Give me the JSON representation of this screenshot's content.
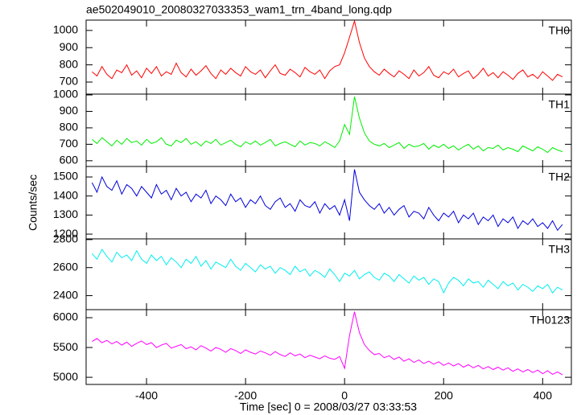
{
  "chart_data": {
    "type": "line",
    "title": "ae502049010_20080327033353_wam1_trn_4band_long.qdp",
    "xlabel": "Time [sec] 0 = 2008/03/27 03:33:53",
    "ylabel": "Counts/sec",
    "xlim": [
      -522,
      458
    ],
    "xticks": [
      -400,
      -200,
      0,
      200,
      400
    ],
    "x": [
      -510,
      -500,
      -490,
      -480,
      -470,
      -460,
      -450,
      -440,
      -430,
      -420,
      -410,
      -400,
      -390,
      -380,
      -370,
      -360,
      -350,
      -340,
      -330,
      -320,
      -310,
      -300,
      -290,
      -280,
      -270,
      -260,
      -250,
      -240,
      -230,
      -220,
      -210,
      -200,
      -190,
      -180,
      -170,
      -160,
      -150,
      -140,
      -130,
      -120,
      -110,
      -100,
      -90,
      -80,
      -70,
      -60,
      -50,
      -40,
      -30,
      -20,
      -10,
      0,
      10,
      20,
      30,
      40,
      50,
      60,
      70,
      80,
      90,
      100,
      110,
      120,
      130,
      140,
      150,
      160,
      170,
      180,
      190,
      200,
      210,
      220,
      230,
      240,
      250,
      260,
      270,
      280,
      290,
      300,
      310,
      320,
      330,
      340,
      350,
      360,
      370,
      380,
      390,
      400,
      410,
      420,
      430,
      440
    ],
    "panels": [
      {
        "name": "TH0",
        "color": "#ff0000",
        "ylim": [
          630,
          1060
        ],
        "yticks": [
          700,
          800,
          900,
          1000
        ],
        "values": [
          760,
          735,
          790,
          745,
          720,
          770,
          755,
          800,
          740,
          765,
          725,
          780,
          750,
          790,
          735,
          760,
          745,
          810,
          755,
          730,
          775,
          740,
          765,
          795,
          750,
          720,
          770,
          745,
          780,
          755,
          735,
          790,
          760,
          745,
          770,
          725,
          765,
          800,
          750,
          740,
          775,
          755,
          730,
          785,
          760,
          745,
          770,
          720,
          765,
          790,
          800,
          870,
          960,
          1055,
          930,
          840,
          790,
          760,
          740,
          775,
          750,
          730,
          765,
          745,
          720,
          770,
          735,
          755,
          790,
          740,
          725,
          760,
          745,
          775,
          730,
          750,
          765,
          720,
          745,
          780,
          735,
          755,
          725,
          760,
          740,
          715,
          750,
          770,
          730,
          745,
          720,
          760,
          735,
          710,
          745,
          730
        ]
      },
      {
        "name": "TH1",
        "color": "#00ee00",
        "ylim": [
          565,
          1005
        ],
        "yticks": [
          600,
          700,
          800,
          900,
          1000
        ],
        "values": [
          730,
          705,
          740,
          715,
          690,
          725,
          700,
          735,
          710,
          720,
          695,
          730,
          705,
          715,
          740,
          700,
          690,
          725,
          710,
          735,
          700,
          715,
          690,
          720,
          705,
          730,
          695,
          710,
          725,
          700,
          685,
          715,
          700,
          720,
          695,
          710,
          730,
          690,
          705,
          715,
          700,
          685,
          720,
          695,
          710,
          705,
          690,
          715,
          700,
          680,
          720,
          820,
          760,
          990,
          860,
          770,
          720,
          700,
          690,
          705,
          680,
          695,
          710,
          675,
          700,
          685,
          690,
          705,
          670,
          695,
          680,
          700,
          675,
          690,
          665,
          685,
          700,
          670,
          690,
          660,
          680,
          675,
          695,
          665,
          680,
          670,
          655,
          690,
          675,
          660,
          685,
          670,
          650,
          680,
          665,
          655
        ]
      },
      {
        "name": "TH2",
        "color": "#0000dd",
        "ylim": [
          1175,
          1555
        ],
        "yticks": [
          1200,
          1300,
          1400,
          1500
        ],
        "values": [
          1470,
          1420,
          1500,
          1450,
          1430,
          1480,
          1410,
          1460,
          1440,
          1400,
          1450,
          1420,
          1390,
          1460,
          1410,
          1430,
          1380,
          1440,
          1400,
          1420,
          1370,
          1410,
          1390,
          1430,
          1360,
          1400,
          1380,
          1350,
          1410,
          1370,
          1390,
          1340,
          1380,
          1360,
          1400,
          1350,
          1330,
          1370,
          1390,
          1340,
          1360,
          1320,
          1380,
          1350,
          1340,
          1370,
          1310,
          1360,
          1330,
          1350,
          1300,
          1380,
          1270,
          1540,
          1420,
          1380,
          1350,
          1330,
          1360,
          1310,
          1340,
          1300,
          1330,
          1350,
          1290,
          1320,
          1310,
          1280,
          1340,
          1300,
          1270,
          1310,
          1290,
          1320,
          1260,
          1300,
          1280,
          1310,
          1250,
          1290,
          1270,
          1300,
          1240,
          1280,
          1260,
          1290,
          1230,
          1270,
          1250,
          1280,
          1240,
          1260,
          1230,
          1270,
          1220,
          1250
        ]
      },
      {
        "name": "TH3",
        "color": "#00eeee",
        "ylim": [
          2300,
          2805
        ],
        "yticks": [
          2400,
          2600,
          2800
        ],
        "values": [
          2700,
          2660,
          2730,
          2680,
          2640,
          2710,
          2670,
          2690,
          2650,
          2720,
          2660,
          2630,
          2690,
          2650,
          2680,
          2620,
          2670,
          2640,
          2600,
          2660,
          2630,
          2680,
          2610,
          2650,
          2590,
          2640,
          2620,
          2600,
          2660,
          2610,
          2580,
          2630,
          2600,
          2570,
          2620,
          2590,
          2610,
          2560,
          2600,
          2580,
          2550,
          2610,
          2570,
          2590,
          2540,
          2580,
          2560,
          2530,
          2590,
          2550,
          2500,
          2560,
          2540,
          2580,
          2520,
          2550,
          2570,
          2530,
          2510,
          2560,
          2540,
          2500,
          2550,
          2520,
          2490,
          2540,
          2510,
          2530,
          2480,
          2520,
          2500,
          2420,
          2490,
          2530,
          2510,
          2470,
          2520,
          2490,
          2500,
          2460,
          2510,
          2480,
          2450,
          2500,
          2470,
          2490,
          2440,
          2480,
          2460,
          2430,
          2470,
          2450,
          2480,
          2420,
          2460,
          2440
        ]
      },
      {
        "name": "TH0123",
        "color": "#ff00ff",
        "ylim": [
          4880,
          6135
        ],
        "yticks": [
          5000,
          5500,
          6000
        ],
        "values": [
          5600,
          5650,
          5580,
          5620,
          5560,
          5600,
          5540,
          5590,
          5520,
          5570,
          5610,
          5550,
          5580,
          5500,
          5540,
          5570,
          5490,
          5520,
          5550,
          5480,
          5510,
          5460,
          5530,
          5490,
          5440,
          5500,
          5470,
          5420,
          5480,
          5450,
          5400,
          5460,
          5420,
          5390,
          5440,
          5410,
          5370,
          5430,
          5380,
          5350,
          5410,
          5360,
          5390,
          5330,
          5370,
          5340,
          5310,
          5360,
          5320,
          5300,
          5350,
          5150,
          5700,
          6100,
          5750,
          5550,
          5450,
          5380,
          5400,
          5330,
          5360,
          5300,
          5340,
          5270,
          5310,
          5250,
          5290,
          5230,
          5270,
          5220,
          5260,
          5200,
          5240,
          5190,
          5230,
          5170,
          5210,
          5160,
          5200,
          5140,
          5180,
          5130,
          5170,
          5120,
          5160,
          5100,
          5140,
          5090,
          5130,
          5080,
          5120,
          5060,
          5110,
          5050,
          5090,
          5040
        ]
      }
    ]
  }
}
